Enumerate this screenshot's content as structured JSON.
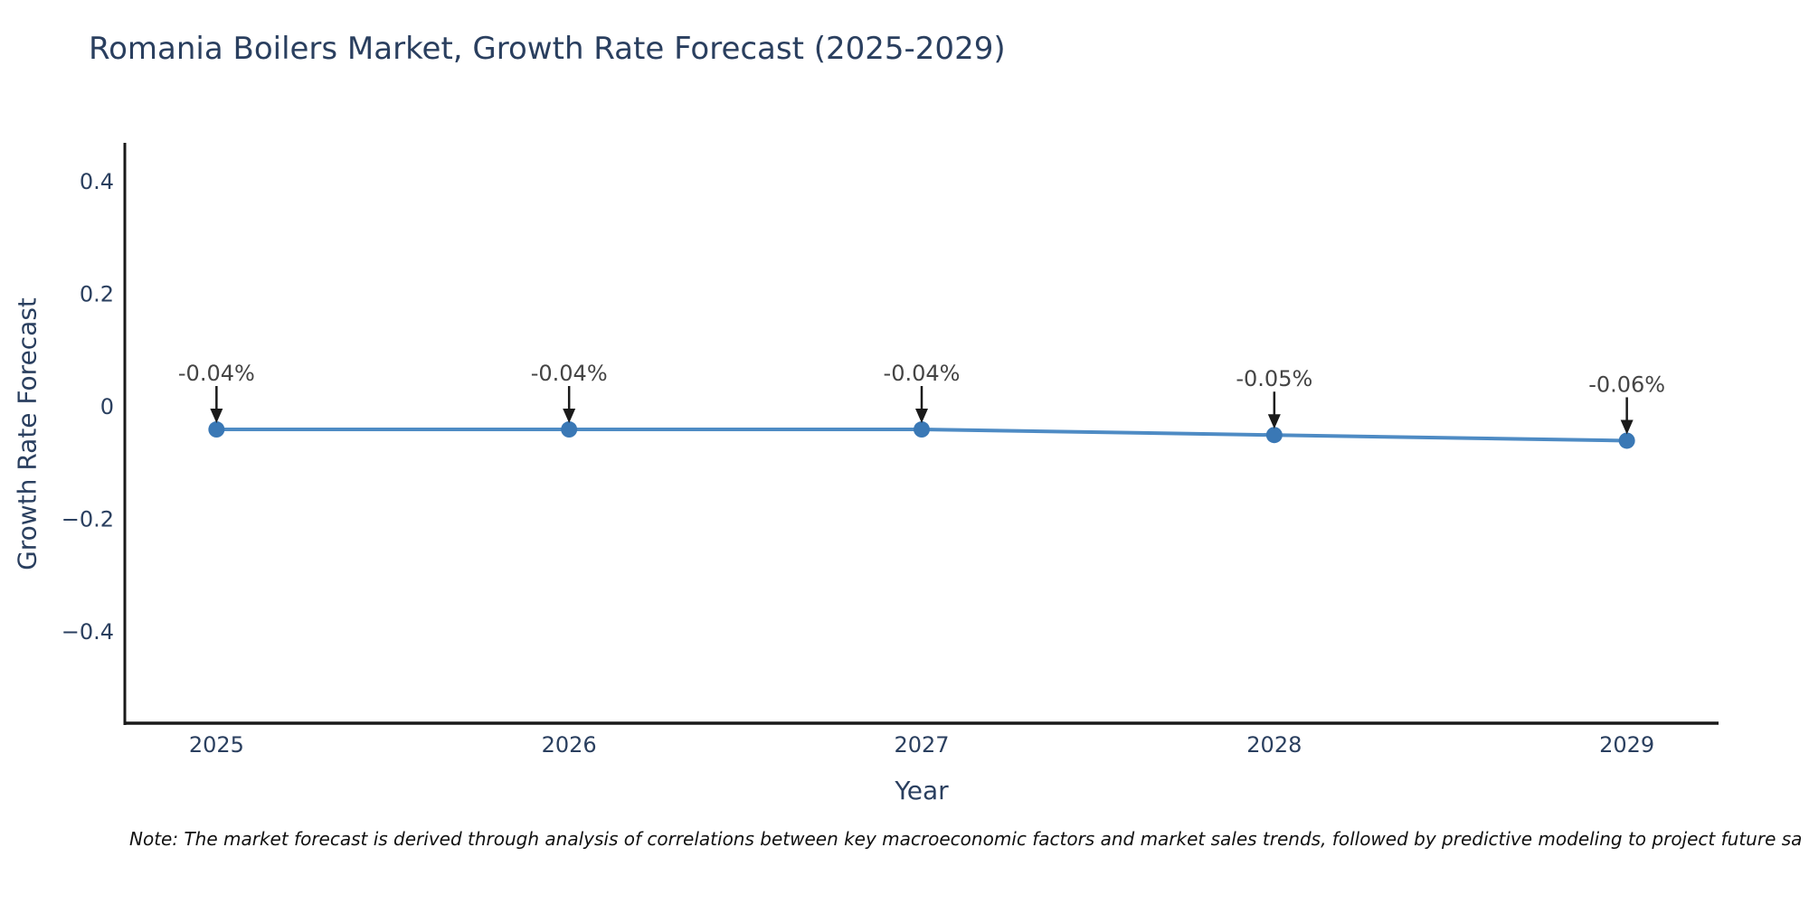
{
  "note": "Note: The market forecast is derived through analysis of correlations between key macroeconomic factors and market sales trends, followed by predictive modeling to project future sa",
  "chart_data": {
    "type": "line",
    "title": "Romania Boilers Market, Growth Rate Forecast (2025-2029)",
    "xlabel": "Year",
    "ylabel": "Growth Rate Forecast",
    "x": [
      2025,
      2026,
      2027,
      2028,
      2029
    ],
    "values": [
      -0.04,
      -0.04,
      -0.04,
      -0.05,
      -0.06
    ],
    "annotations": [
      "-0.04%",
      "-0.04%",
      "-0.04%",
      "-0.05%",
      "-0.06%"
    ],
    "xtick_labels": [
      "2025",
      "2026",
      "2027",
      "2028",
      "2029"
    ],
    "yticks": [
      0.4,
      0.2,
      0,
      -0.2,
      -0.4
    ],
    "ytick_labels": [
      "0.4",
      "0.2",
      "0",
      "−0.2",
      "−0.4"
    ],
    "xlim": [
      2024.74,
      2029.26
    ],
    "ylim": [
      -0.562,
      0.466
    ],
    "grid": false,
    "legend": "none",
    "colors": {
      "line": "#4e8bc4",
      "marker": "#3a78b5",
      "axis": "#1a1a1a",
      "arrow": "#1a1a1a",
      "tick_text": "#2a3f5f",
      "annotation_text": "#444444",
      "title_text": "#2a3f5f"
    }
  }
}
